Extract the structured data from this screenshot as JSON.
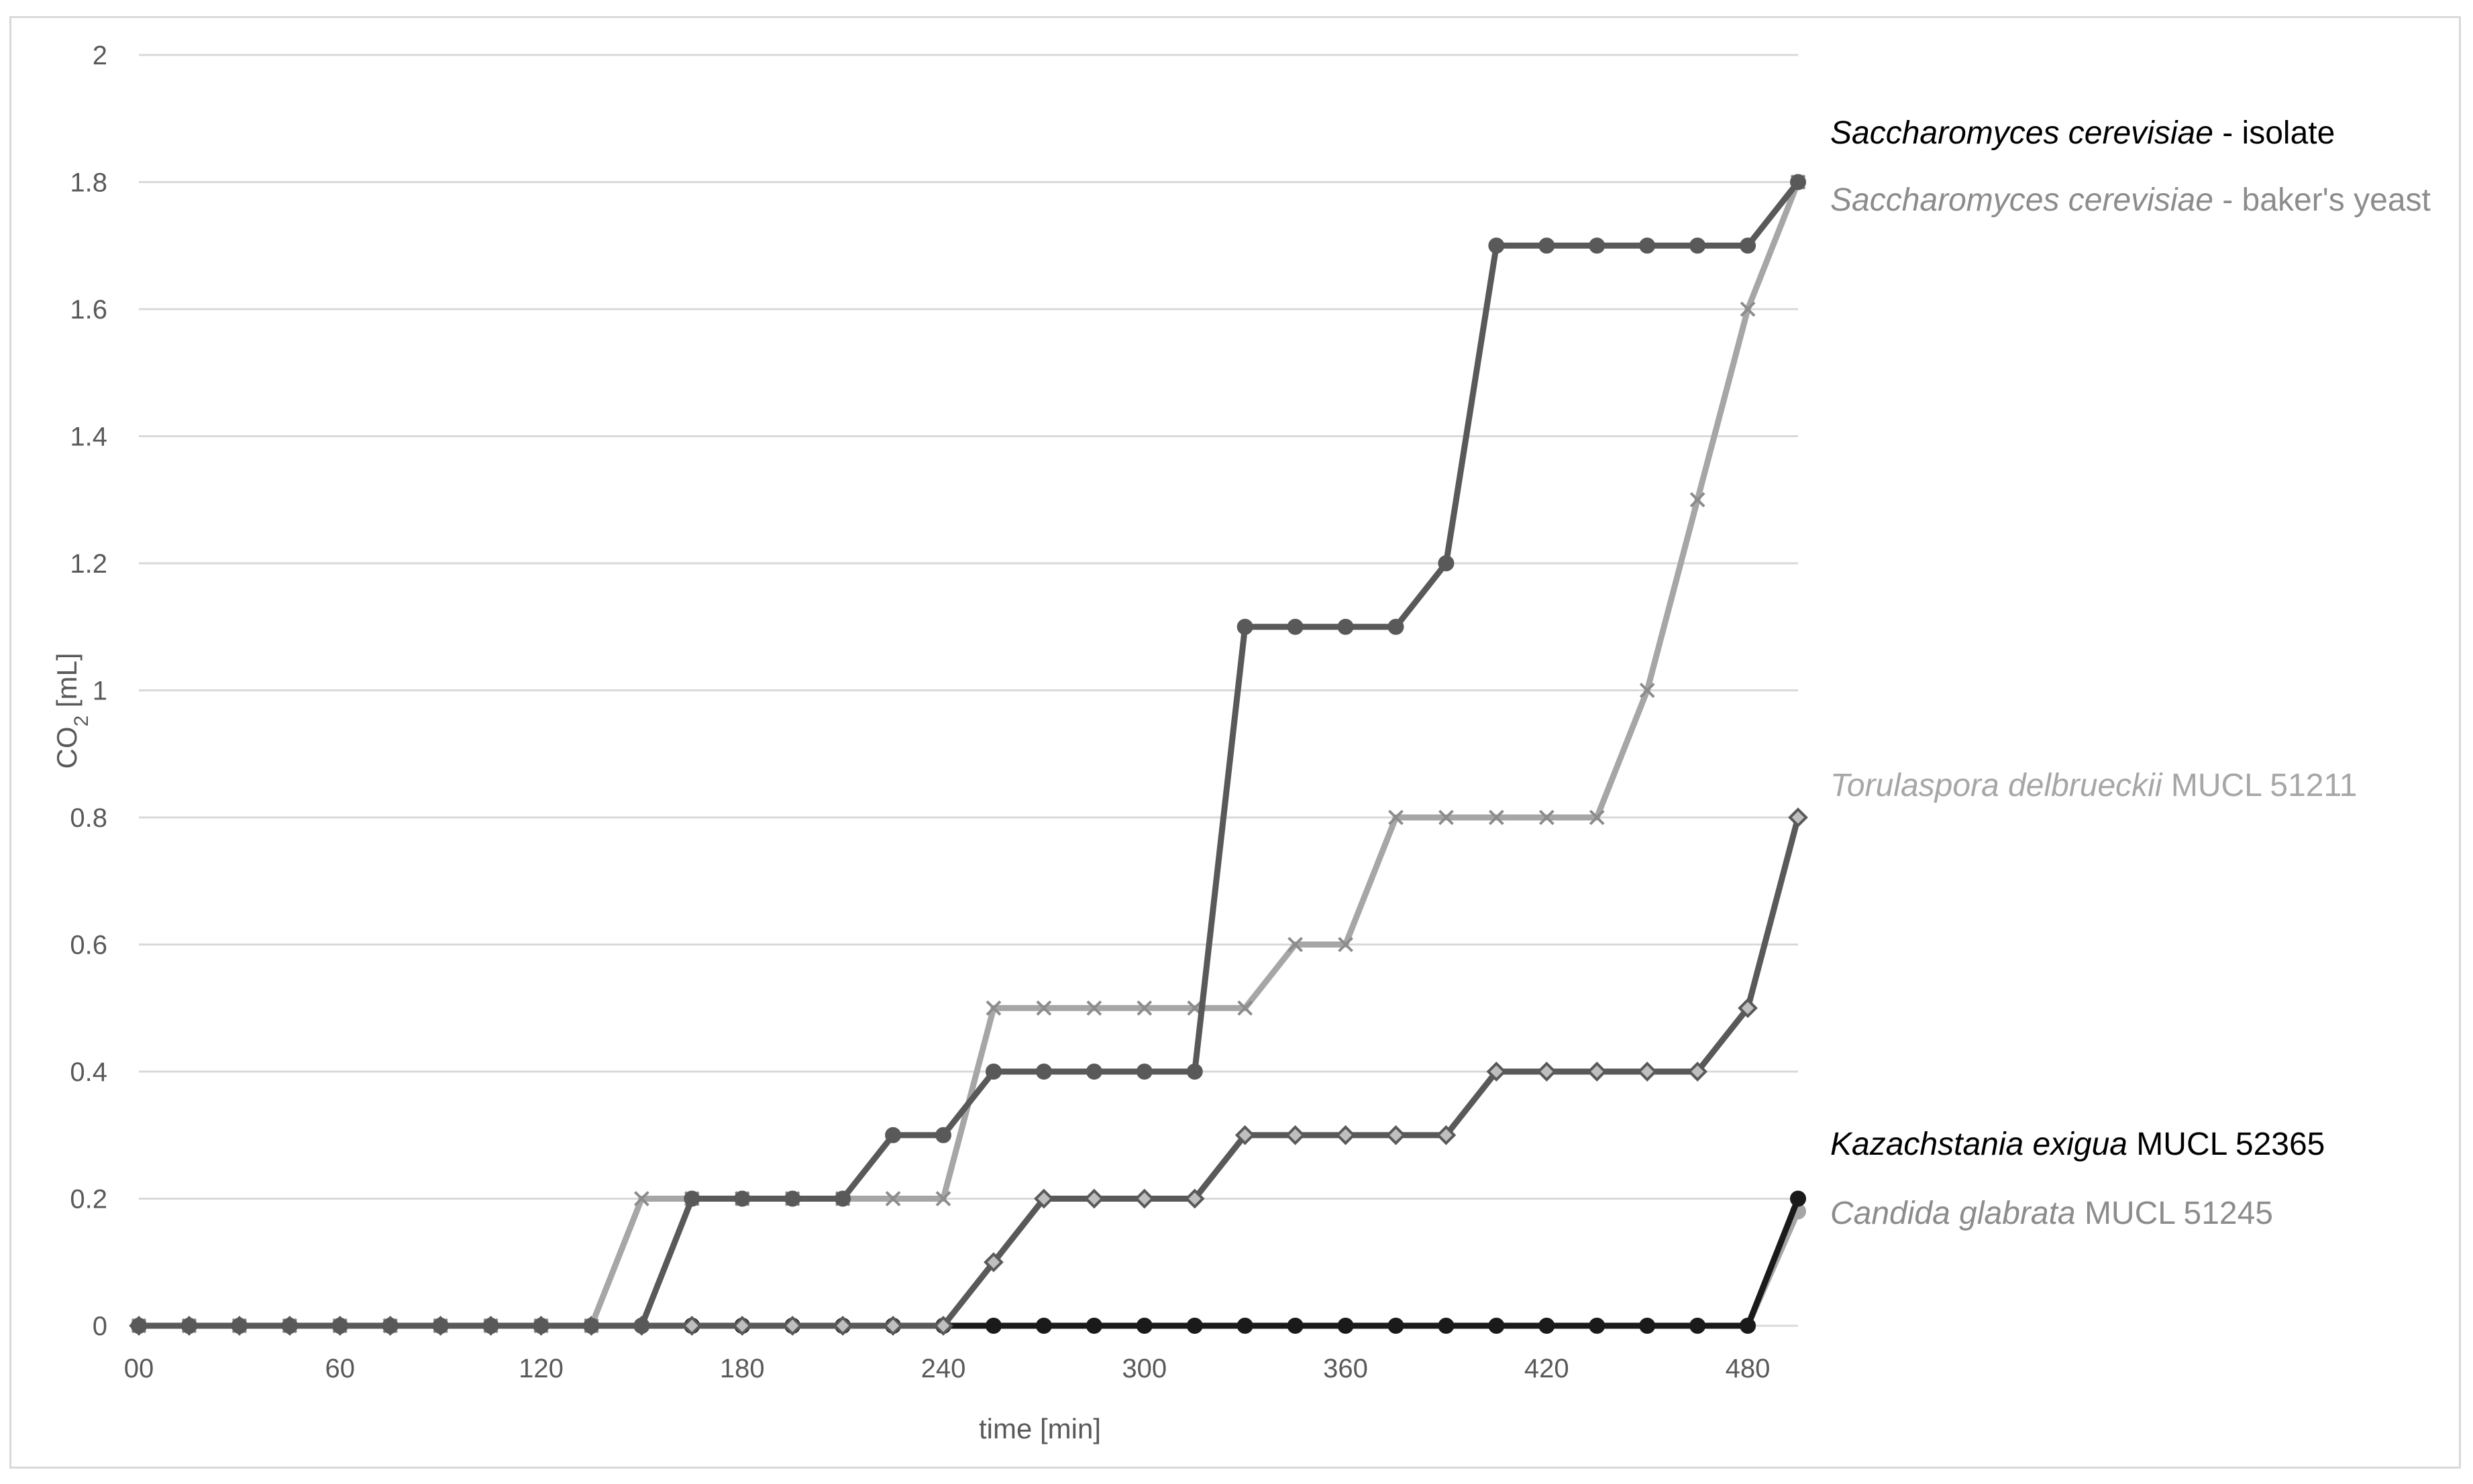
{
  "chart_data": {
    "type": "line",
    "title": "",
    "xlabel": "time [min]",
    "ylabel": "CO2 [mL]",
    "ylabel_parts": {
      "main": "CO",
      "sub": "2",
      "unit": " [mL]"
    },
    "x_tick_labels": [
      "00",
      "60",
      "120",
      "180",
      "240",
      "300",
      "360",
      "420",
      "480"
    ],
    "y_tick_labels": [
      "0",
      "0.2",
      "0.4",
      "0.6",
      "0.8",
      "1",
      "1.2",
      "1.4",
      "1.6",
      "1.8",
      "2"
    ],
    "xlim": [
      0,
      495
    ],
    "ylim": [
      0,
      2
    ],
    "grid": "horizontal",
    "legend": "labels at line ends (right)",
    "x": [
      0,
      15,
      30,
      45,
      60,
      75,
      90,
      105,
      120,
      135,
      150,
      165,
      180,
      195,
      210,
      225,
      240,
      255,
      270,
      285,
      300,
      315,
      330,
      345,
      360,
      375,
      390,
      405,
      420,
      435,
      450,
      465,
      480,
      495
    ],
    "series": [
      {
        "name": "Saccharomyces cerevisiae - isolate",
        "color": "#595959",
        "marker": "circle",
        "values": [
          0,
          0,
          0,
          0,
          0,
          0,
          0,
          0,
          0,
          0,
          0,
          0.2,
          0.2,
          0.2,
          0.2,
          0.3,
          0.3,
          0.4,
          0.4,
          0.4,
          0.4,
          0.4,
          1.1,
          1.1,
          1.1,
          1.1,
          1.2,
          1.7,
          1.7,
          1.7,
          1.7,
          1.7,
          1.7,
          1.8
        ]
      },
      {
        "name": "Saccharomyces cerevisiae - baker's yeast",
        "color": "#a6a6a6",
        "marker": "x",
        "values": [
          0,
          0,
          0,
          0,
          0,
          0,
          0,
          0,
          0,
          0,
          0.2,
          0.2,
          0.2,
          0.2,
          0.2,
          0.2,
          0.2,
          0.5,
          0.5,
          0.5,
          0.5,
          0.5,
          0.5,
          0.6,
          0.6,
          0.8,
          0.8,
          0.8,
          0.8,
          0.8,
          1.0,
          1.3,
          1.6,
          1.8
        ]
      },
      {
        "name": "Torulaspora delbrueckii MUCL 51211",
        "color": "#595959",
        "marker": "diamond",
        "values": [
          0,
          0,
          0,
          0,
          0,
          0,
          0,
          0,
          0,
          0,
          0,
          0,
          0,
          0,
          0,
          0,
          0,
          0.1,
          0.2,
          0.2,
          0.2,
          0.2,
          0.3,
          0.3,
          0.3,
          0.3,
          0.3,
          0.4,
          0.4,
          0.4,
          0.4,
          0.4,
          0.5,
          0.8
        ]
      },
      {
        "name": "Kazachstania exigua MUCL 52365",
        "color": "#1a1a1a",
        "marker": "circle",
        "values": [
          0,
          0,
          0,
          0,
          0,
          0,
          0,
          0,
          0,
          0,
          0,
          0,
          0,
          0,
          0,
          0,
          0,
          0,
          0,
          0,
          0,
          0,
          0,
          0,
          0,
          0,
          0,
          0,
          0,
          0,
          0,
          0,
          0,
          0.2
        ]
      },
      {
        "name": "Candida glabrata MUCL 51245",
        "color": "#a6a6a6",
        "marker": "circle",
        "values": [
          0,
          0,
          0,
          0,
          0,
          0,
          0,
          0,
          0,
          0,
          0,
          0,
          0,
          0,
          0,
          0,
          0,
          0,
          0,
          0,
          0,
          0,
          0,
          0,
          0,
          0,
          0,
          0,
          0,
          0,
          0,
          0,
          0,
          0.18
        ]
      }
    ],
    "end_labels": [
      {
        "italic": "Saccharomyces cerevisiae",
        "rest": " - isolate",
        "color": "#000000"
      },
      {
        "italic": "Saccharomyces cerevisiae",
        "rest": " - baker's yeast",
        "color": "#8c8c8c"
      },
      {
        "italic": "Torulaspora delbrueckii",
        "rest": " MUCL 51211",
        "color": "#a6a6a6"
      },
      {
        "italic": "Kazachstania exigua",
        "rest": " MUCL 52365",
        "color": "#000000"
      },
      {
        "italic": "Candida glabrata",
        "rest": " MUCL 51245",
        "color": "#8c8c8c"
      }
    ],
    "grid_color": "#d9d9d9"
  }
}
